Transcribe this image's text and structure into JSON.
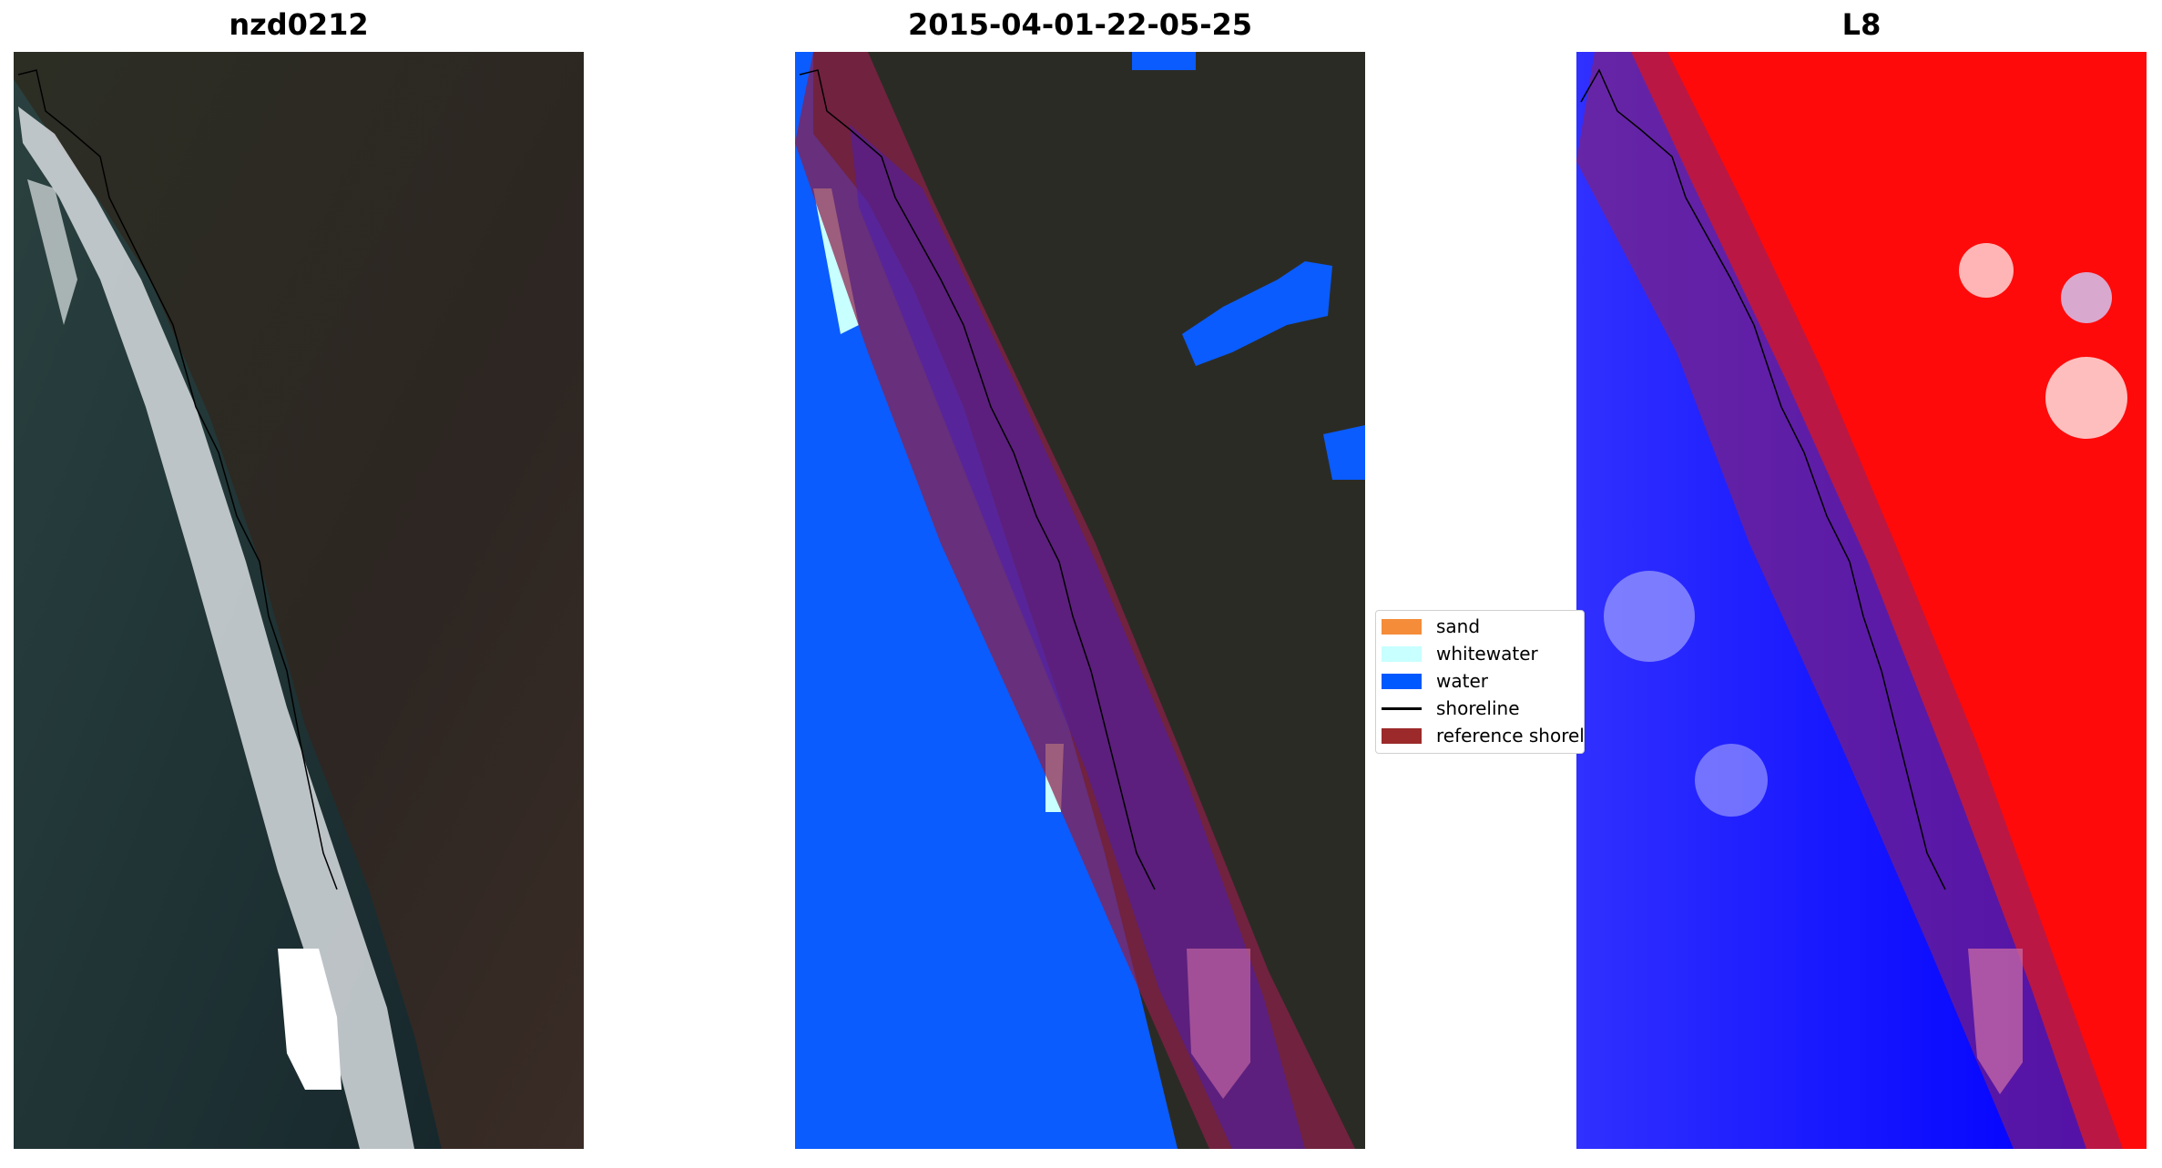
{
  "panels": [
    {
      "title": "nzd0212"
    },
    {
      "title": "2015-04-01-22-05-25"
    },
    {
      "title": "L8"
    }
  ],
  "legend": {
    "items": [
      {
        "label": "sand",
        "color": "#f58c3a"
      },
      {
        "label": "whitewater",
        "color": "#c8ffff"
      },
      {
        "label": "water",
        "color": "#0058ff"
      },
      {
        "label": "shoreline",
        "color": "#000000"
      },
      {
        "label": "reference shoreline buffer",
        "color": "#9c2a2a"
      }
    ]
  },
  "colors": {
    "land_dark": "#2b2a24",
    "ocean_dark": "#1e3236",
    "water_class": "#0a5cff",
    "buffer_overlay": "#8c1f4a",
    "mndwi_positive": "#ff0000",
    "mndwi_negative": "#0000ff"
  }
}
